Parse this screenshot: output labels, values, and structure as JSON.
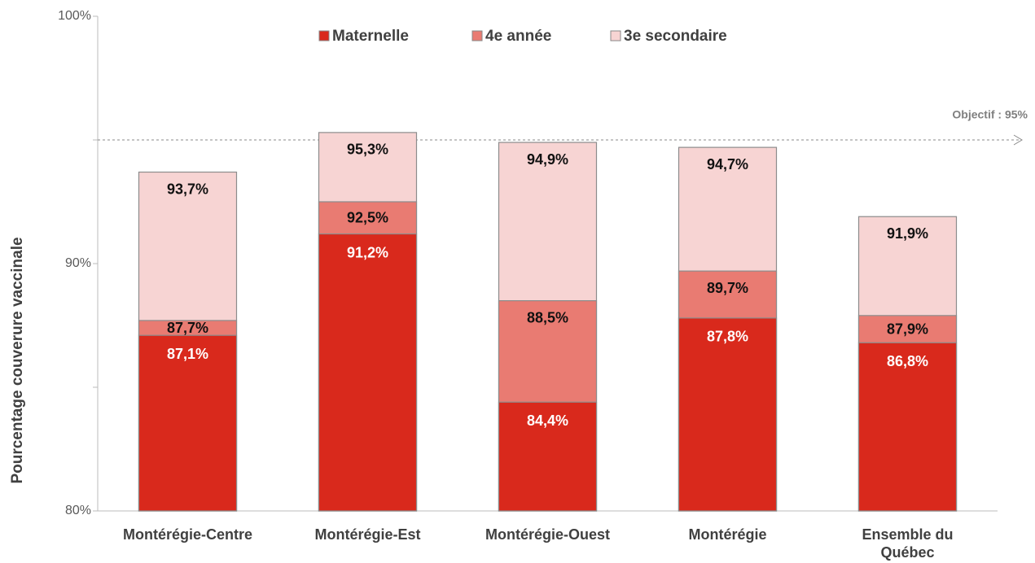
{
  "chart_data": {
    "type": "bar",
    "categories": [
      "Montérégie-Centre",
      "Montérégie-Est",
      "Montérégie-Ouest",
      "Montérégie",
      "Ensemble du Québec"
    ],
    "series": [
      {
        "name": "Maternelle",
        "color": "#d9291c",
        "values": [
          87.1,
          91.2,
          84.4,
          87.8,
          86.8
        ],
        "value_labels": [
          "87,1%",
          "91,2%",
          "84,4%",
          "87,8%",
          "86,8%"
        ]
      },
      {
        "name": "4e année",
        "color": "#e97b72",
        "values": [
          87.7,
          92.5,
          88.5,
          89.7,
          87.9
        ],
        "value_labels": [
          "87,7%",
          "92,5%",
          "88,5%",
          "89,7%",
          "87,9%"
        ]
      },
      {
        "name": "3e secondaire",
        "color": "#f7d4d3",
        "values": [
          93.7,
          95.3,
          94.9,
          94.7,
          91.9
        ],
        "value_labels": [
          "93,7%",
          "95,3%",
          "94,9%",
          "94,7%",
          "91,9%"
        ]
      }
    ],
    "ylabel": "Pourcentage couverure vaccinale",
    "ylim": [
      80,
      100
    ],
    "yticks": [
      {
        "value": 80,
        "label": "80%"
      },
      {
        "value": 90,
        "label": "90%"
      },
      {
        "value": 100,
        "label": "100%"
      }
    ],
    "minor_yticks": [
      85,
      95
    ],
    "target": {
      "value": 95,
      "label": "Objectif : 95%"
    },
    "legend": "top"
  }
}
